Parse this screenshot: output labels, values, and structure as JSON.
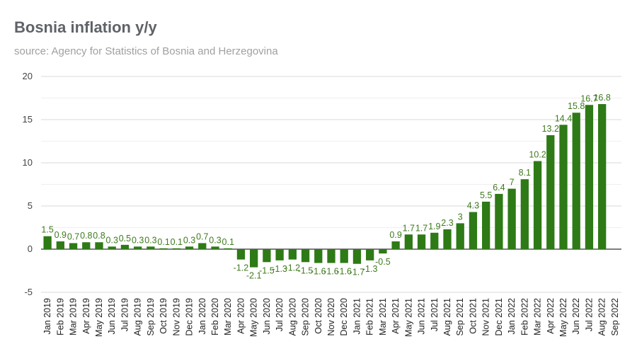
{
  "chart_data": {
    "type": "bar",
    "title": "Bosnia inflation y/y",
    "subtitle": "source: Agency for Statistics of Bosnia and Herzegovina",
    "xlabel": "",
    "ylabel": "",
    "ylim": [
      -5,
      20
    ],
    "yticks": [
      -5,
      0,
      5,
      10,
      15,
      20
    ],
    "grid": true,
    "legend": "none",
    "bar_color": "#2e7a16",
    "label_color": "#3f7a1e",
    "categories": [
      "Jan 2019",
      "Feb 2019",
      "Mar 2019",
      "Apr 2019",
      "May 2019",
      "Jun 2019",
      "Jul 2019",
      "Aug 2019",
      "Sep 2019",
      "Oct 2019",
      "Nov 2019",
      "Dec 2019",
      "Jan 2020",
      "Feb 2020",
      "Mar 2020",
      "Apr 2020",
      "May 2020",
      "Jun 2020",
      "Jul 2020",
      "Aug 2020",
      "Sep 2020",
      "Oct 2020",
      "Nov 2020",
      "Dec 2020",
      "Jan 2021",
      "Feb 2021",
      "Mar 2021",
      "Apr 2021",
      "May 2021",
      "Jun 2021",
      "Jul 2021",
      "Aug 2021",
      "Sep 2021",
      "Oct 2021",
      "Nov 2021",
      "Dec 2021",
      "Jan 2022",
      "Feb 2022",
      "Mar 2022",
      "Apr 2022",
      "May 2022",
      "Jun 2022",
      "Jul 2022",
      "Aug 2022",
      "Sep 2022"
    ],
    "values": [
      1.5,
      0.9,
      0.7,
      0.8,
      0.8,
      0.3,
      0.5,
      0.3,
      0.3,
      0.1,
      0.1,
      0.3,
      0.7,
      0.3,
      0.1,
      -1.2,
      -2.1,
      -1.5,
      -1.3,
      -1.2,
      -1.5,
      -1.6,
      -1.6,
      -1.6,
      -1.7,
      -1.3,
      -0.5,
      0.9,
      1.7,
      1.7,
      1.9,
      2.3,
      3,
      4.3,
      5.5,
      6.4,
      7,
      8.1,
      10.2,
      13.2,
      14.4,
      15.8,
      16.7,
      16.8,
      null
    ],
    "data_labels": [
      "1.5",
      "0.9",
      "0.7",
      "0.8",
      "0.8",
      "0.3",
      "0.5",
      "0.3",
      "0.3",
      "0.1",
      "0.1",
      "0.3",
      "0.7",
      "0.3",
      "0.1",
      "-1.2",
      "-2.1",
      "-1.5",
      "-1.3",
      "-1.2",
      "-1.5",
      "-1.6",
      "-1.6",
      "-1.6",
      "-1.7",
      "-1.3",
      "-0.5",
      "0.9",
      "1.7",
      "1.7",
      "1.9",
      "2.3",
      "3",
      "4.3",
      "5.5",
      "6.4",
      "7",
      "8.1",
      "10.2",
      "13.2",
      "14.4",
      "15.8",
      "16.7",
      "16.8",
      ""
    ]
  }
}
